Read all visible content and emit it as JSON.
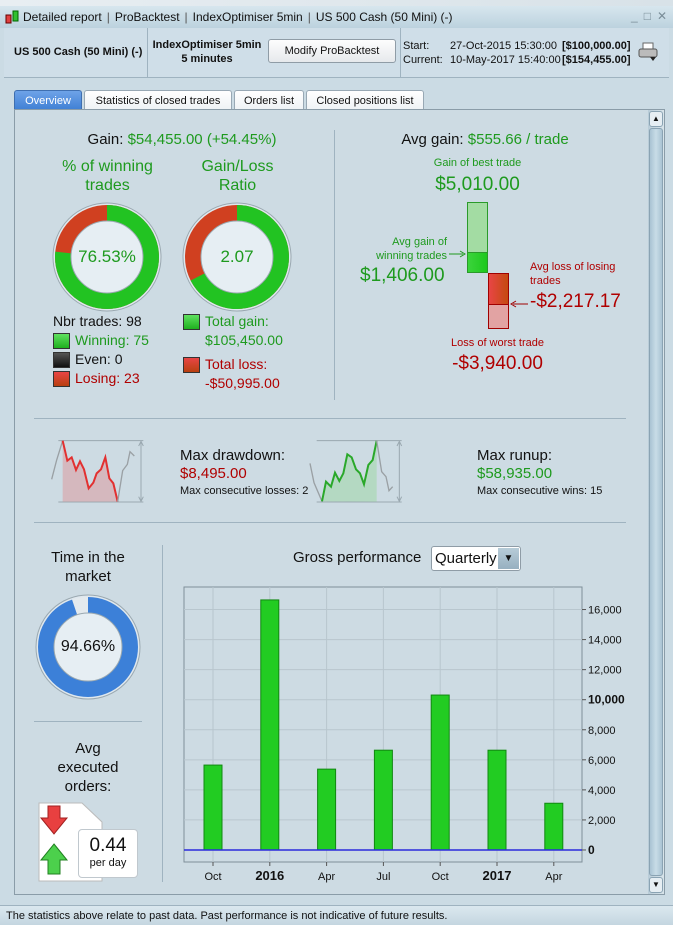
{
  "window": {
    "title_parts": [
      "Detailed report",
      "ProBacktest",
      "IndexOptimiser 5min",
      "US 500 Cash (50 Mini) (-)"
    ],
    "controls": [
      "_",
      "□",
      "✕"
    ]
  },
  "header": {
    "instrument": "US 500 Cash (50 Mini) (-)",
    "system": "IndexOptimiser 5min",
    "timeframe": "5 minutes",
    "modify_label": "Modify ProBacktest",
    "start_label": "Start:",
    "start_date": "27-Oct-2015 15:30:00",
    "start_capital": "[$100,000.00]",
    "current_label": "Current:",
    "current_date": "10-May-2017 15:40:00",
    "current_capital": "[$154,455.00]"
  },
  "tabs": [
    {
      "label": "Overview",
      "active": true
    },
    {
      "label": "Statistics of closed trades"
    },
    {
      "label": "Orders list"
    },
    {
      "label": "Closed positions list"
    }
  ],
  "overview": {
    "gain_label": "Gain:",
    "gain_value": "$54,455.00 (+54.45%)",
    "winning_title": "% of winning trades",
    "winning_pct": "76.53%",
    "winning_fraction": 0.7653,
    "ratio_title": "Gain/Loss Ratio",
    "ratio_value": "2.07",
    "gain_fraction": 0.674,
    "nbr_trades": "Nbr trades: 98",
    "winning": "Winning: 75",
    "even": "Even: 0",
    "losing": "Losing: 23",
    "total_gain_label": "Total gain:",
    "total_gain": "$105,450.00",
    "total_loss_label": "Total loss:",
    "total_loss": "-$50,995.00",
    "avg_gain_label": "Avg gain:",
    "avg_gain_value": "$555.66 / trade",
    "best_label": "Gain of best trade",
    "best_value": "$5,010.00",
    "avg_win_label": "Avg gain of winning trades",
    "avg_win_value": "$1,406.00",
    "avg_loss_label": "Avg loss of losing trades",
    "avg_loss_value": "-$2,217.17",
    "worst_label": "Loss of worst trade",
    "worst_value": "-$3,940.00",
    "drawdown_label": "Max drawdown:",
    "drawdown_value": "$8,495.00",
    "consec_losses": "Max consecutive losses: 2",
    "runup_label": "Max runup:",
    "runup_value": "$58,935.00",
    "consec_wins": "Max consecutive wins: 15",
    "time_label": "Time in the market",
    "time_value": "94.66%",
    "time_fraction": 0.9466,
    "orders_label": "Avg executed orders:",
    "orders_value": "0.44",
    "orders_unit": "per day",
    "gross_label": "Gross performance",
    "period_selected": "Quarterly"
  },
  "colors": {
    "gain": "#1e9a1e",
    "loss": "#b00000",
    "bar": "#22cc22",
    "zero_line": "#2b2bdd",
    "time": "#3c80d8"
  },
  "chart_data": {
    "type": "bar",
    "categories": [
      "Oct",
      "2016",
      "Apr",
      "Jul",
      "Oct",
      "2017",
      "Apr"
    ],
    "bold_categories": [
      "2016",
      "2017"
    ],
    "values": [
      5650,
      16640,
      5380,
      6640,
      10310,
      6640,
      3110
    ],
    "ylim": [
      -800,
      17500
    ],
    "yticks": [
      0,
      2000,
      4000,
      6000,
      8000,
      10000,
      12000,
      14000,
      16000
    ],
    "ytick_labels": [
      "0",
      "2,000",
      "4,000",
      "6,000",
      "8,000",
      "10,000",
      "12,000",
      "14,000",
      "16,000"
    ],
    "y_axis_side": "right",
    "grid": true,
    "xlabel": "",
    "ylabel": ""
  },
  "status": {
    "text": "The statistics above relate to past data. Past performance is not indicative of future results."
  }
}
